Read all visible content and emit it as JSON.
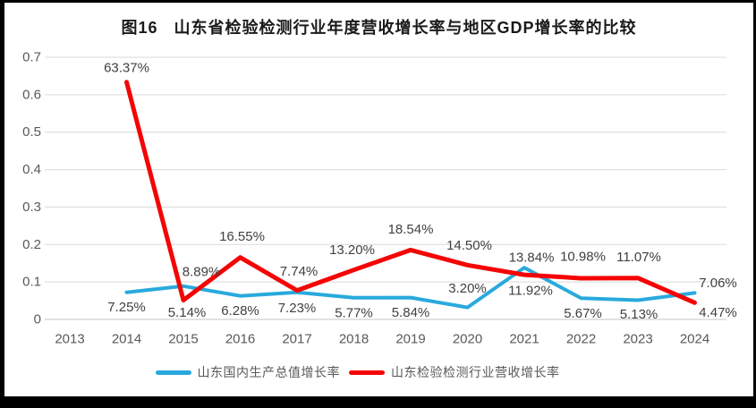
{
  "chart_data": {
    "type": "line",
    "title": "图16   山东省检验检测行业年度营收增长率与地区GDP增长率的比较",
    "categories": [
      "2013",
      "2014",
      "2015",
      "2016",
      "2017",
      "2018",
      "2019",
      "2020",
      "2021",
      "2022",
      "2023",
      "2024"
    ],
    "y_axis": {
      "min": 0,
      "max": 0.7,
      "tick_values": [
        0,
        0.1,
        0.2,
        0.3,
        0.4,
        0.5,
        0.6,
        0.7
      ],
      "tick_labels": [
        "0",
        "0.1",
        "0.2",
        "0.3",
        "0.4",
        "0.5",
        "0.6",
        "0.7"
      ]
    },
    "grid": true,
    "legend_position": "bottom",
    "series": [
      {
        "name": "山东国内生产总值增长率",
        "color": "#29a9dd",
        "start_category": "2014",
        "values_percent": [
          7.25,
          8.89,
          6.28,
          7.23,
          5.77,
          5.84,
          3.2,
          13.84,
          5.67,
          5.13,
          7.06
        ],
        "point_labels": [
          "7.25%",
          "8.89%",
          "6.28%",
          "7.23%",
          "5.77%",
          "5.84%",
          "3.20%",
          "13.84%",
          "5.67%",
          "5.13%",
          "7.06%"
        ],
        "label_offsets": [
          [
            0,
            17
          ],
          [
            20,
            -16
          ],
          [
            0,
            17
          ],
          [
            0,
            18
          ],
          [
            0,
            17
          ],
          [
            0,
            17
          ],
          [
            0,
            -21
          ],
          [
            8,
            -11
          ],
          [
            2,
            17
          ],
          [
            1,
            16
          ],
          [
            26,
            -11
          ]
        ]
      },
      {
        "name": "山东检验检测行业营收增长率",
        "color": "#f40505",
        "start_category": "2014",
        "values_percent": [
          63.37,
          5.14,
          16.55,
          7.74,
          13.2,
          18.54,
          14.5,
          11.92,
          10.98,
          11.07,
          4.47
        ],
        "point_labels": [
          "63.37%",
          "5.14%",
          "16.55%",
          "7.74%",
          "13.20%",
          "18.54%",
          "14.50%",
          "11.92%",
          "10.98%",
          "11.07%",
          "4.47%"
        ],
        "label_offsets": [
          [
            0,
            -16
          ],
          [
            4,
            14
          ],
          [
            2,
            -23
          ],
          [
            2,
            -21
          ],
          [
            -2,
            -22
          ],
          [
            0,
            -23
          ],
          [
            2,
            -22
          ],
          [
            7,
            18
          ],
          [
            2,
            -24
          ],
          [
            1,
            -23
          ],
          [
            26,
            11
          ]
        ]
      }
    ],
    "colors": {
      "gridline": "#d9d9d9",
      "baseline": "#c6c6c6",
      "tick_text": "#595959",
      "data_label_text": "#404040",
      "title_text": "#1a1a1a"
    }
  }
}
